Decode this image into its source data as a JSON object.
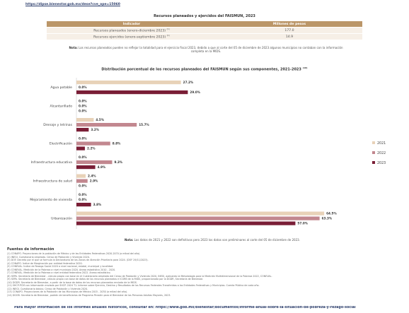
{
  "top_link": "https://dipse.bienestar.gob.mx/dese?cve_ope=15060",
  "table": {
    "title": "Recursos planeados y ejercidos del FAISMUN, 2023",
    "headers": [
      "Indicador",
      "Millones de pesos"
    ],
    "rows": [
      {
        "label": "Recursos planeados (enero-diciembre 2023)",
        "sup": "(1)",
        "value": "177.0"
      },
      {
        "label": "Recursos ejercidos (enero-septiembre 2023)",
        "sup": "(1)",
        "value": "14.9"
      }
    ],
    "note_label": "Nota:",
    "note_text": "Los recursos planeados pueden no reflejar la totalidad para el ejercicio fiscal 2023, debido a que al corte del 05 de diciembre de 2023 algunos municipios no contaban con la información completa en la MIDS."
  },
  "chart": {
    "title": "Distribución porcentual de los recursos planeados del FAISMUN según sus componentes, 2021-2023",
    "title_sup": "(10)",
    "note_label": "Nota:",
    "note_text": "Los datos de 2021 y 2022 son definitivos pero 2023 los datos son preliminares al corte del 05 de diciembre de 2023."
  },
  "chart_data": {
    "type": "bar",
    "orientation": "horizontal",
    "categories": [
      "Agua potable",
      "Alcantarillado",
      "Drenaje y letrinas",
      "Electrificación",
      "Infraestructura educativa",
      "Infraestructura de salud",
      "Mejoramiento de vivienda",
      "Urbanización"
    ],
    "series": [
      {
        "name": "2021",
        "color": "#e8d2b8",
        "values": [
          27.2,
          0.0,
          4.5,
          0.0,
          0.0,
          2.4,
          0.0,
          64.5
        ],
        "labels": [
          "27.2%",
          "0.0%",
          "4.5%",
          "0.0%",
          "0.0%",
          "2.4%",
          "0.0%",
          "64.5%"
        ]
      },
      {
        "name": "2022",
        "color": "#c2878f",
        "values": [
          0.0,
          0.0,
          15.7,
          8.8,
          9.3,
          2.9,
          0.0,
          63.3
        ],
        "labels": [
          "0.0%",
          "0.0%",
          "15.7%",
          "8.8%",
          "9.3%",
          "2.9%",
          "0.0%",
          "63.3%"
        ]
      },
      {
        "name": "2023",
        "color": "#7a1e36",
        "values": [
          29.0,
          0.0,
          3.2,
          2.2,
          4.9,
          0.0,
          3.8,
          57.0
        ],
        "labels": [
          "29.0%",
          "0.0%",
          "3.2%",
          "2.2%",
          "4.9%",
          "0.0%",
          "3.8%",
          "57.0%"
        ]
      }
    ],
    "xlim": [
      0,
      70
    ],
    "grid": false,
    "legend_position": "right"
  },
  "sources": {
    "title": "Fuentes de información",
    "items": [
      "(1) CONAPO. Proyecciones de la población de México y de las Entidades Federativas 2020-2070 (a mitad del año).",
      "(2) INEGI. Cuestionario ampliado. Censo de Población y Vivienda 2020.",
      "(3) DOF. Decreto por el que se formula la Declaratoria de las Zonas de Atención Prioritaria para 2024. (DOF 29/11/2023).",
      "(4) CONAPO. Índice de Marginación por entidad federativa 2020.",
      "(5) CONEVAL. Índice de Rezago Social 2020 a nivel nacional, estatal, municipal y localidad.",
      "(6) CONEVAL. Medición de la Pobreza a nivel municipio 2020. Anexo estadístico 2010 - 2020.",
      "(7) CONEVAL. Medición de la Pobreza a nivel entidad federativa 2022. Anexo estadístico.",
      "(8) SEPA. Secretaría de Bienestar - cálculo propio con base en el Cuestionario ampliado del Censo de Población y Vivienda 2020, INEGI, aplicando la Metodología para la Medición Multidimensional de la Pobreza 2022, CONEVAL.",
      "(9) SEPA. Secretaría de Bienestar, cálculo propio con base de datos de los recursos planeados e ICGRB de la MIDS, proporcionada por la DGDR, Secretaría de Bienestar.",
      "(10) DGDR. Secretaría de Bienestar, a partir de la base de datos de los recursos planeados enviada de la MIDS.",
      "(11) SHCP-PCM con información enviada por SHCP. 2024 T1. Informe sobre Ejercicio, Destino y Resultados de los Recursos Federales Transferidos a las Entidades Federativas y Municipios. Cuenta Pública de cada año.",
      "(12) INEGI. Cuestionario básico. Censo de Población y Vivienda 2020.",
      "(13) CONAPO. Proyecciones de la Población de los Municipios de México 2015 - 2030 (a mitad del año).",
      "(14) DGOB. Secretaría de Bienestar, padrón de beneficiarios de Programa Pensión para el Bienestar de las Personas Adultas Mayores, 2023."
    ]
  },
  "footer_text": "Para mayor información de los informes anuales históricos, consultar en: https://www.gob.mx/bienestar/documentos/informe-anual-sobre-la-situacion-de-pobreza-y-rezago-social"
}
